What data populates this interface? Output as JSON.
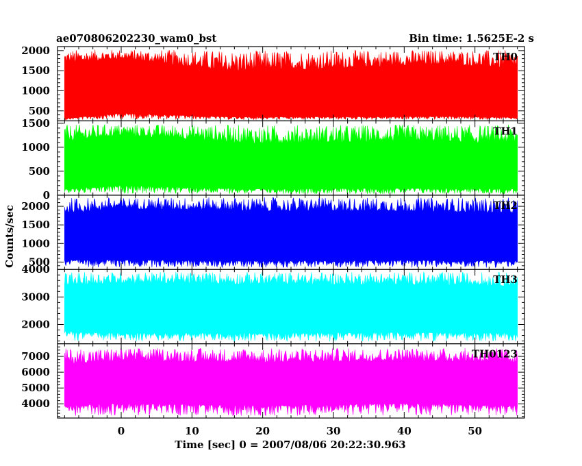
{
  "header": {
    "title_left": "ae070806202230_wam0_bst",
    "title_right": "Bin time: 1.5625E-2 s"
  },
  "chart_data": {
    "type": "line",
    "ylabel": "Counts/sec",
    "xlabel": "Time [sec] 0 = 2007/08/06 20:22:30.963",
    "xlim": [
      -9,
      57
    ],
    "x_range_data": [
      -8,
      56
    ],
    "x_major_ticks": [
      0,
      10,
      20,
      30,
      40,
      50
    ],
    "x_minor_step": 2,
    "panels": [
      {
        "name": "TH0",
        "color": "#ff0000",
        "ylim": [
          250,
          2100
        ],
        "y_major_ticks": [
          500,
          1000,
          1500,
          2000
        ],
        "y_minor_step": 100,
        "band": [
          [
            -8,
            300,
            1750
          ],
          [
            0,
            400,
            1850
          ],
          [
            15,
            330,
            1600
          ],
          [
            30,
            330,
            1650
          ],
          [
            45,
            340,
            1750
          ],
          [
            56,
            320,
            1650
          ]
        ],
        "spike_max": 2050,
        "spike_min": 270
      },
      {
        "name": "TH1",
        "color": "#00ff00",
        "ylim": [
          0,
          1550
        ],
        "y_major_ticks": [
          0,
          500,
          1000,
          1500
        ],
        "y_minor_step": 100,
        "band": [
          [
            -8,
            100,
            1200
          ],
          [
            0,
            150,
            1300
          ],
          [
            20,
            100,
            1150
          ],
          [
            40,
            110,
            1200
          ],
          [
            56,
            100,
            1150
          ]
        ],
        "spike_max": 1500,
        "spike_min": 10
      },
      {
        "name": "TH2",
        "color": "#0000ff",
        "ylim": [
          300,
          2300
        ],
        "y_major_ticks": [
          500,
          1000,
          1500,
          2000
        ],
        "y_minor_step": 100,
        "band": [
          [
            -8,
            500,
            1900
          ],
          [
            0,
            500,
            2000
          ],
          [
            20,
            480,
            1950
          ],
          [
            40,
            490,
            1950
          ],
          [
            56,
            480,
            1900
          ]
        ],
        "spike_max": 2270,
        "spike_min": 330
      },
      {
        "name": "TH3",
        "color": "#00ffff",
        "ylim": [
          1300,
          4000
        ],
        "y_major_ticks": [
          2000,
          3000,
          4000
        ],
        "y_minor_step": 200,
        "band": [
          [
            -8,
            1650,
            3500
          ],
          [
            0,
            1600,
            3600
          ],
          [
            20,
            1600,
            3550
          ],
          [
            40,
            1620,
            3550
          ],
          [
            56,
            1600,
            3500
          ]
        ],
        "spike_max": 3950,
        "spike_min": 1350
      },
      {
        "name": "TH0123",
        "color": "#ff00ff",
        "ylim": [
          3100,
          7800
        ],
        "y_major_ticks": [
          4000,
          5000,
          6000,
          7000
        ],
        "y_minor_step": 200,
        "band": [
          [
            -8,
            3700,
            6700
          ],
          [
            0,
            3800,
            6900
          ],
          [
            20,
            3700,
            6800
          ],
          [
            40,
            3800,
            6900
          ],
          [
            56,
            3700,
            6800
          ]
        ],
        "spike_max": 7600,
        "spike_min": 3150
      }
    ]
  }
}
